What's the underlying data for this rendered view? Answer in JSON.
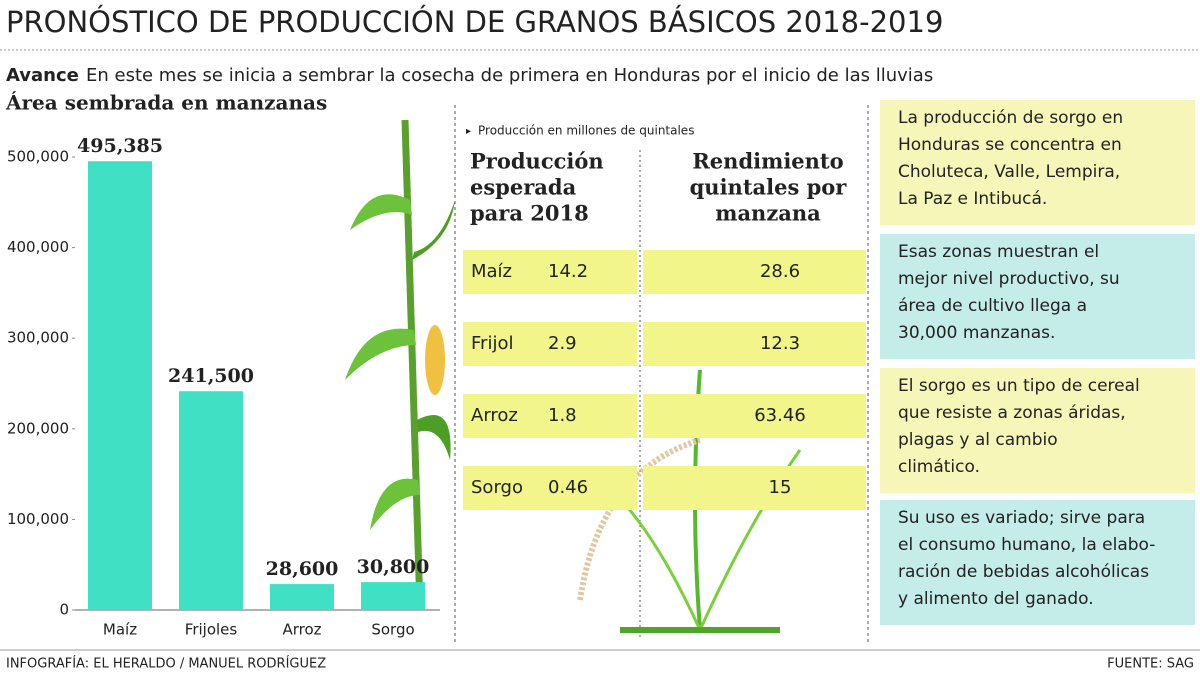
{
  "header": {
    "title": "PRONÓSTICO DE PRODUCCIÓN DE GRANOS BÁSICOS 2018-2019",
    "lead": "Avance",
    "subtitle": "En este mes se inicia a sembrar  la cosecha de primera en Honduras por el inicio de las lluvias"
  },
  "chart_data": {
    "type": "bar",
    "title": "Área sembrada en manzanas",
    "categories": [
      "Maíz",
      "Frijoles",
      "Arroz",
      "Sorgo"
    ],
    "values": [
      495385,
      241500,
      28600,
      30800
    ],
    "value_labels": [
      "495,385",
      "241,500",
      "28,600",
      "30,800"
    ],
    "color": "#3fe0c4",
    "ylim": [
      0,
      500000
    ],
    "yticks": [
      0,
      {
        "value": 100000,
        "label": "100,000"
      },
      {
        "value": 200000,
        "label": "200,000"
      },
      {
        "value": 300000,
        "label": "300,000"
      },
      {
        "value": 400000,
        "label": "400,000"
      },
      {
        "value": 500000,
        "label": "500,000"
      }
    ],
    "grid": false
  },
  "table": {
    "note": "Producción en millones de quintales",
    "headers": [
      [
        "Producción",
        "esperada",
        "para 2018"
      ],
      [
        "Rendimiento",
        "quintales por",
        "manzana"
      ]
    ],
    "rows": [
      [
        "Maíz",
        14.2,
        28.6
      ],
      [
        "Frijol",
        2.9,
        12.3
      ],
      [
        "Arroz",
        1.8,
        63.46
      ],
      [
        "Sorgo",
        0.46,
        15
      ]
    ]
  },
  "notes": [
    [
      "La producción de sorgo en",
      "Honduras se concentra en",
      "Choluteca, Valle, Lempira,",
      "La Paz e Intibucá."
    ],
    [
      "Esas zonas muestran el",
      "mejor nivel productivo, su",
      "área de cultivo llega a",
      "30,000 manzanas."
    ],
    [
      "El sorgo es un tipo de cereal",
      "que resiste a zonas áridas,",
      "plagas y al cambio",
      "climático."
    ],
    [
      "Su uso es variado; sirve para",
      "el consumo humano, la elabo-",
      "ración de bebidas alcohólicas",
      "y alimento del ganado."
    ]
  ],
  "footer": {
    "credit": "INFOGRAFÍA: EL HERALDO / MANUEL RODRÍGUEZ",
    "source": "FUENTE: SAG"
  }
}
